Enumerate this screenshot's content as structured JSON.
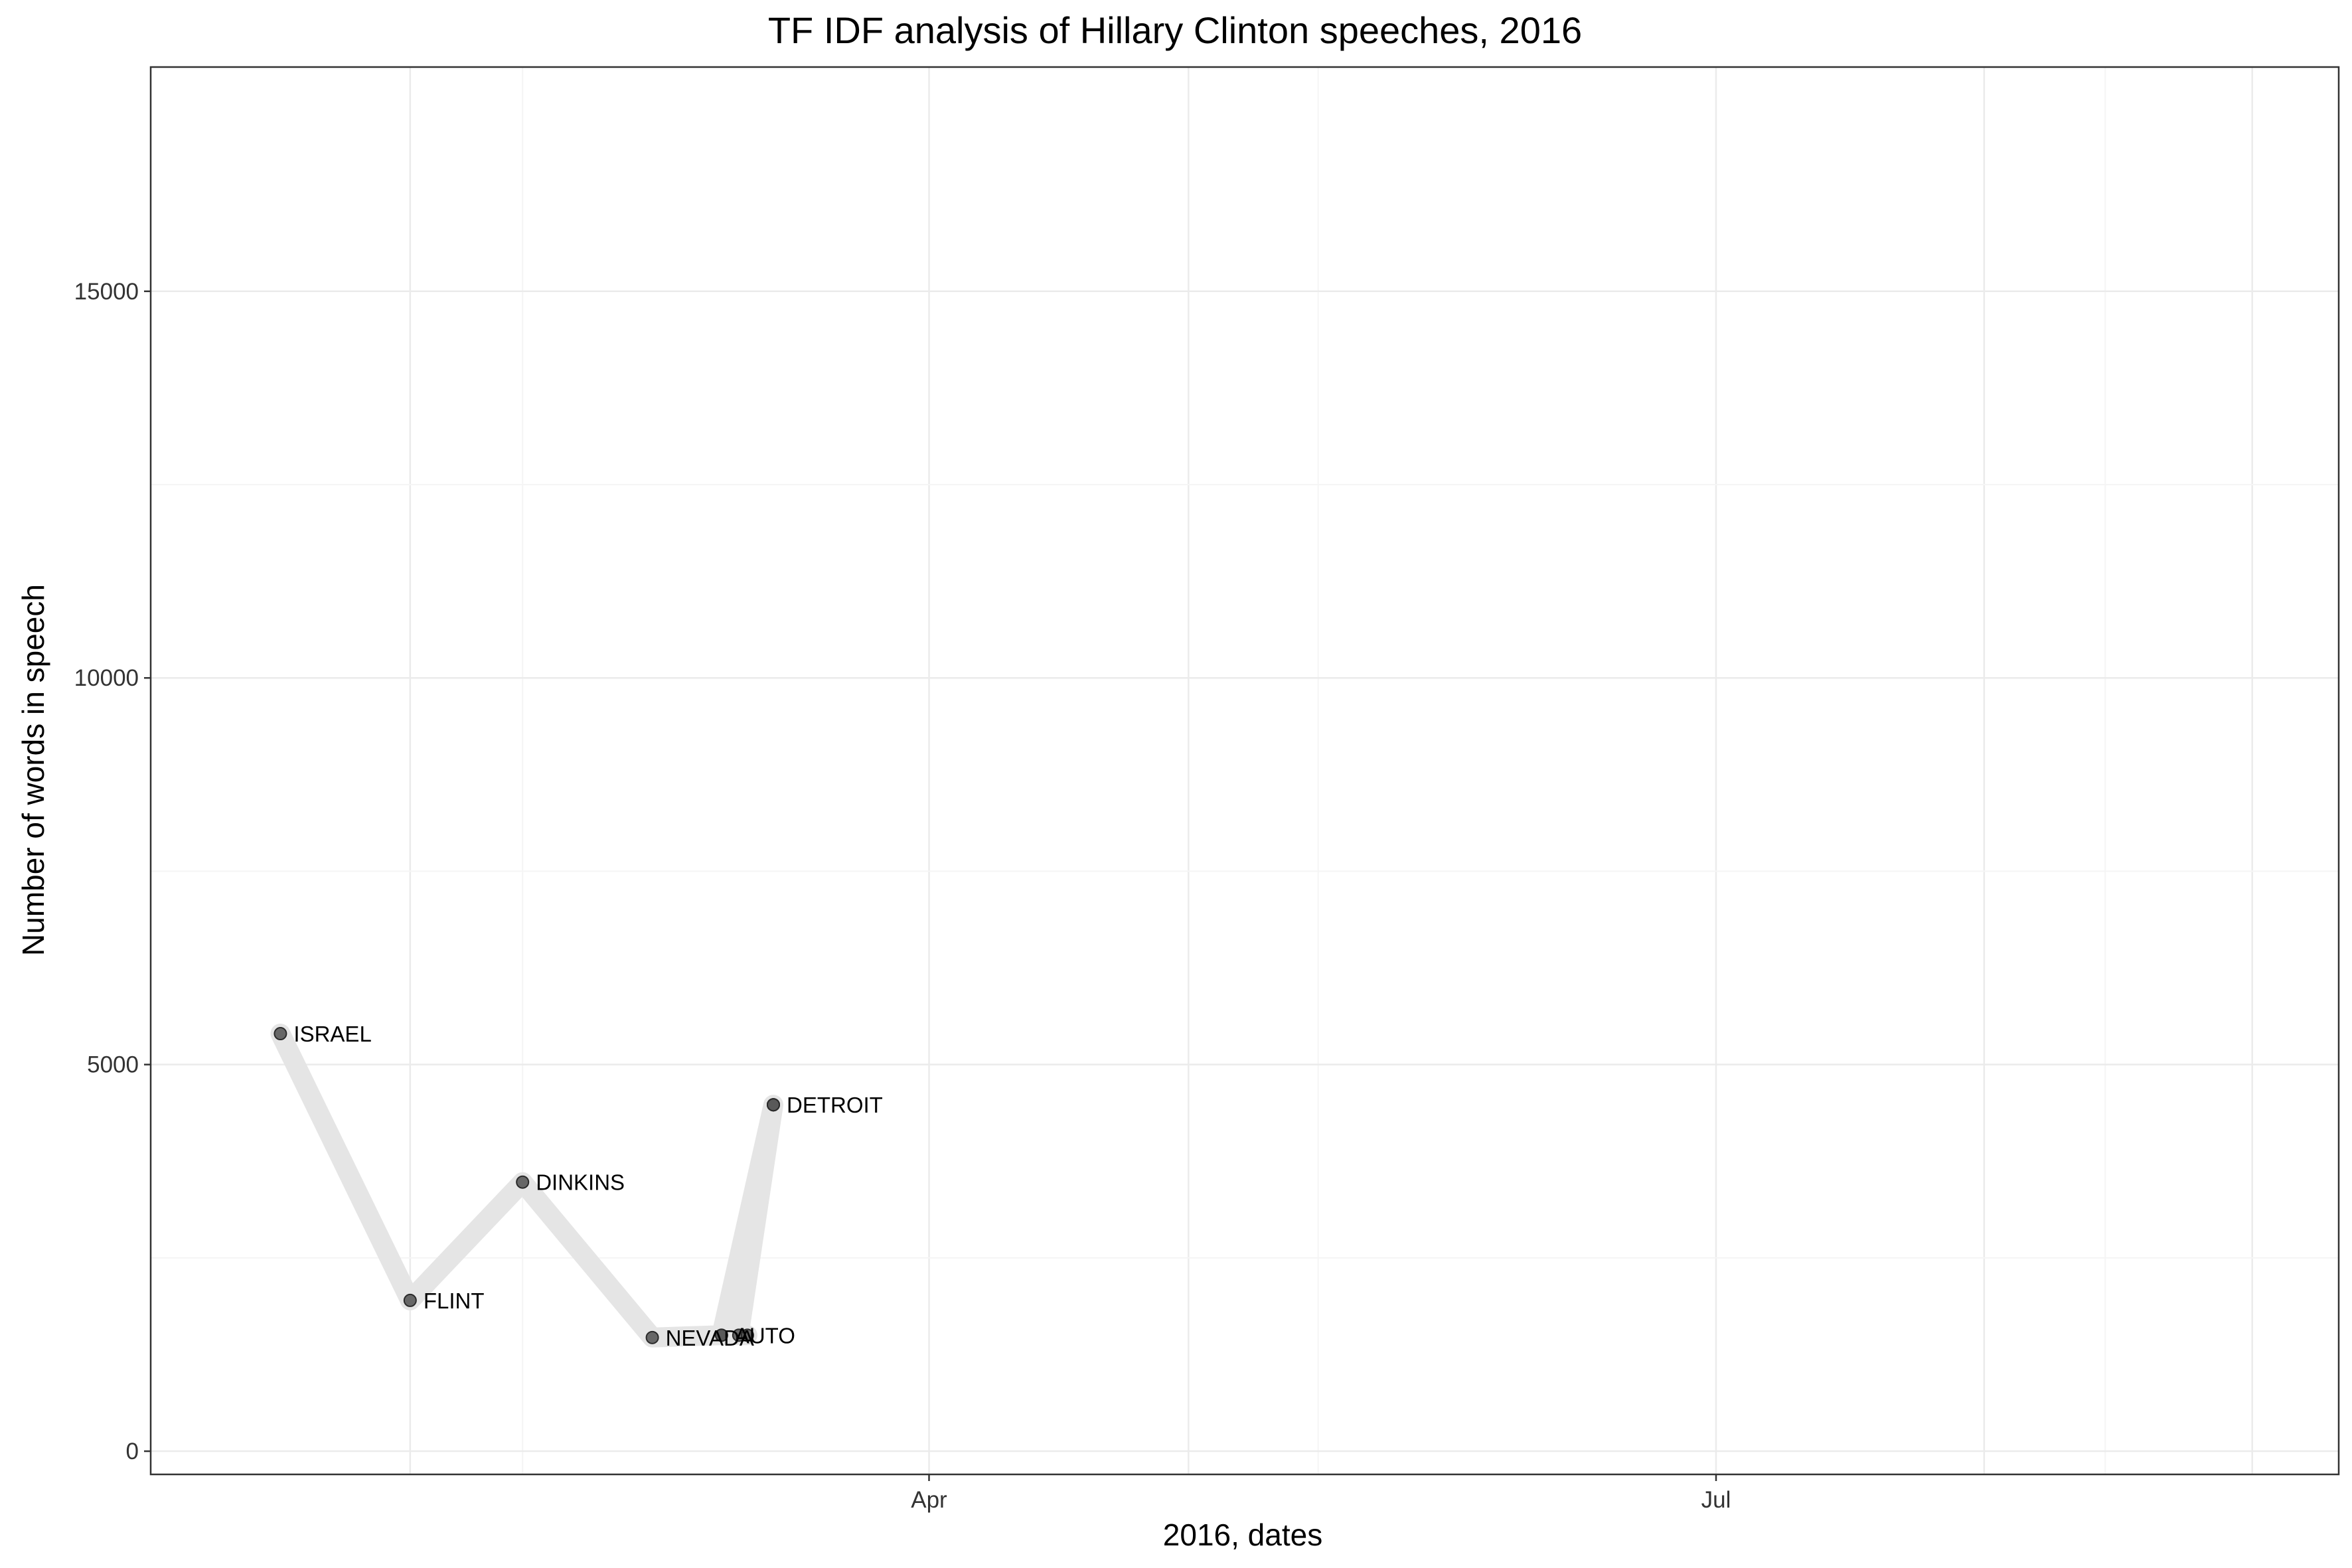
{
  "chart_data": {
    "type": "line",
    "title": "TF IDF analysis of Hillary Clinton speeches, 2016",
    "xlabel": "2016, dates",
    "ylabel": "Number of words in speech",
    "x_axis": {
      "type": "date",
      "range": [
        "2016-01-02",
        "2016-09-11"
      ],
      "tick_labels": [
        "Apr",
        "Jul"
      ],
      "tick_dates": [
        "2016-04-01",
        "2016-07-01"
      ]
    },
    "y_axis": {
      "range": [
        -300,
        17900
      ],
      "ticks": [
        0,
        5000,
        10000,
        15000
      ]
    },
    "grid": true,
    "legend": "none",
    "colors": {
      "line": "#e5e5e5",
      "point": "#595959",
      "panel_border": "#333333",
      "grid_major": "#ebebeb",
      "grid_minor": "#f5f5f5"
    },
    "series": [
      {
        "points": [
          {
            "date": "2016-01-17",
            "value": 5400,
            "label": "ISRAEL"
          },
          {
            "date": "2016-02-01",
            "value": 1950,
            "label": "FLINT"
          },
          {
            "date": "2016-02-14",
            "value": 3480,
            "label": "DINKINS"
          },
          {
            "date": "2016-02-29",
            "value": 1470,
            "label": "NEVADA"
          },
          {
            "date": "2016-03-08",
            "value": 1500,
            "label": "AUTO"
          },
          {
            "date": "2016-03-14",
            "value": 4480,
            "label": "DETROIT"
          },
          {
            "date": "2016-03-10",
            "value": 1500,
            "label": ""
          },
          {
            "date": "2016-03-11",
            "value": 1500,
            "label": ""
          },
          {
            "date": "2016-03-08",
            "value": 1500,
            "label": ""
          },
          {
            "date": "2016-03-14",
            "value": 4480,
            "label": ""
          },
          {
            "date": "2016-03-14",
            "value": 4480,
            "label": ""
          },
          {
            "date": "2016-03-14",
            "value": 4480,
            "label": ""
          }
        ]
      }
    ]
  }
}
